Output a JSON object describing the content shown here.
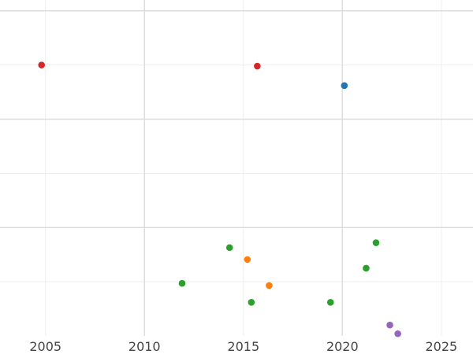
{
  "chart_data": {
    "type": "scatter",
    "title": "",
    "xlabel": "",
    "ylabel": "",
    "xlim": [
      2002.7,
      2026.6
    ],
    "ylim": [
      0,
      6.2
    ],
    "grid": true,
    "legend": "none",
    "x_ticks": [
      2005,
      2010,
      2015,
      2020,
      2025
    ],
    "x_major_grid": [
      2010,
      2020
    ],
    "x_minor_grid": [
      2005,
      2015,
      2025
    ],
    "y_major_grid": [
      2,
      4,
      6
    ],
    "y_minor_grid": [
      1,
      3,
      5
    ],
    "series": [
      {
        "color": "#d62728",
        "points": [
          [
            2004.8,
            5.0
          ],
          [
            2015.7,
            4.98
          ]
        ]
      },
      {
        "color": "#1f77b4",
        "points": [
          [
            2020.1,
            4.62
          ]
        ]
      },
      {
        "color": "#2ca02c",
        "points": [
          [
            2011.9,
            0.97
          ],
          [
            2014.3,
            1.63
          ],
          [
            2015.4,
            0.62
          ],
          [
            2019.4,
            0.62
          ],
          [
            2021.2,
            1.25
          ],
          [
            2021.7,
            1.72
          ]
        ]
      },
      {
        "color": "#ff7f0e",
        "points": [
          [
            2015.2,
            1.41
          ],
          [
            2016.3,
            0.93
          ]
        ]
      },
      {
        "color": "#9467bd",
        "points": [
          [
            2022.4,
            0.2
          ],
          [
            2022.8,
            0.04
          ]
        ]
      }
    ]
  }
}
